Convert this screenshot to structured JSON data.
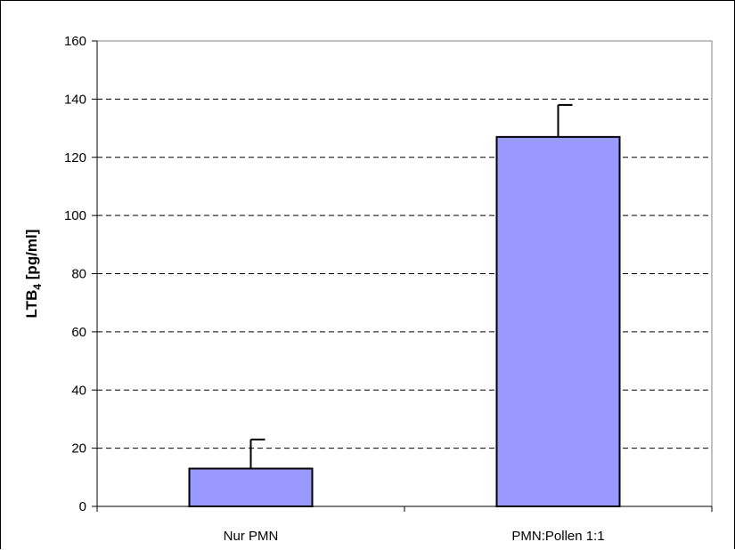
{
  "chart_data": {
    "type": "bar",
    "categories": [
      "Nur PMN",
      "PMN:Pollen 1:1"
    ],
    "values": [
      13,
      127
    ],
    "error_plus": [
      10,
      11
    ],
    "title": "",
    "xlabel": "",
    "ylabel": {
      "main": "LTB",
      "sub": "4",
      "unit": " [pg/ml]"
    },
    "ylim": [
      0,
      160
    ],
    "yticks": [
      0,
      20,
      40,
      60,
      80,
      100,
      120,
      140,
      160
    ],
    "grid": "horizontal-dashed",
    "legend": "none",
    "colors": {
      "bar": "#9999FF",
      "bar_edge": "#000000",
      "grid": "#000000",
      "plot_border": "#808080"
    }
  }
}
